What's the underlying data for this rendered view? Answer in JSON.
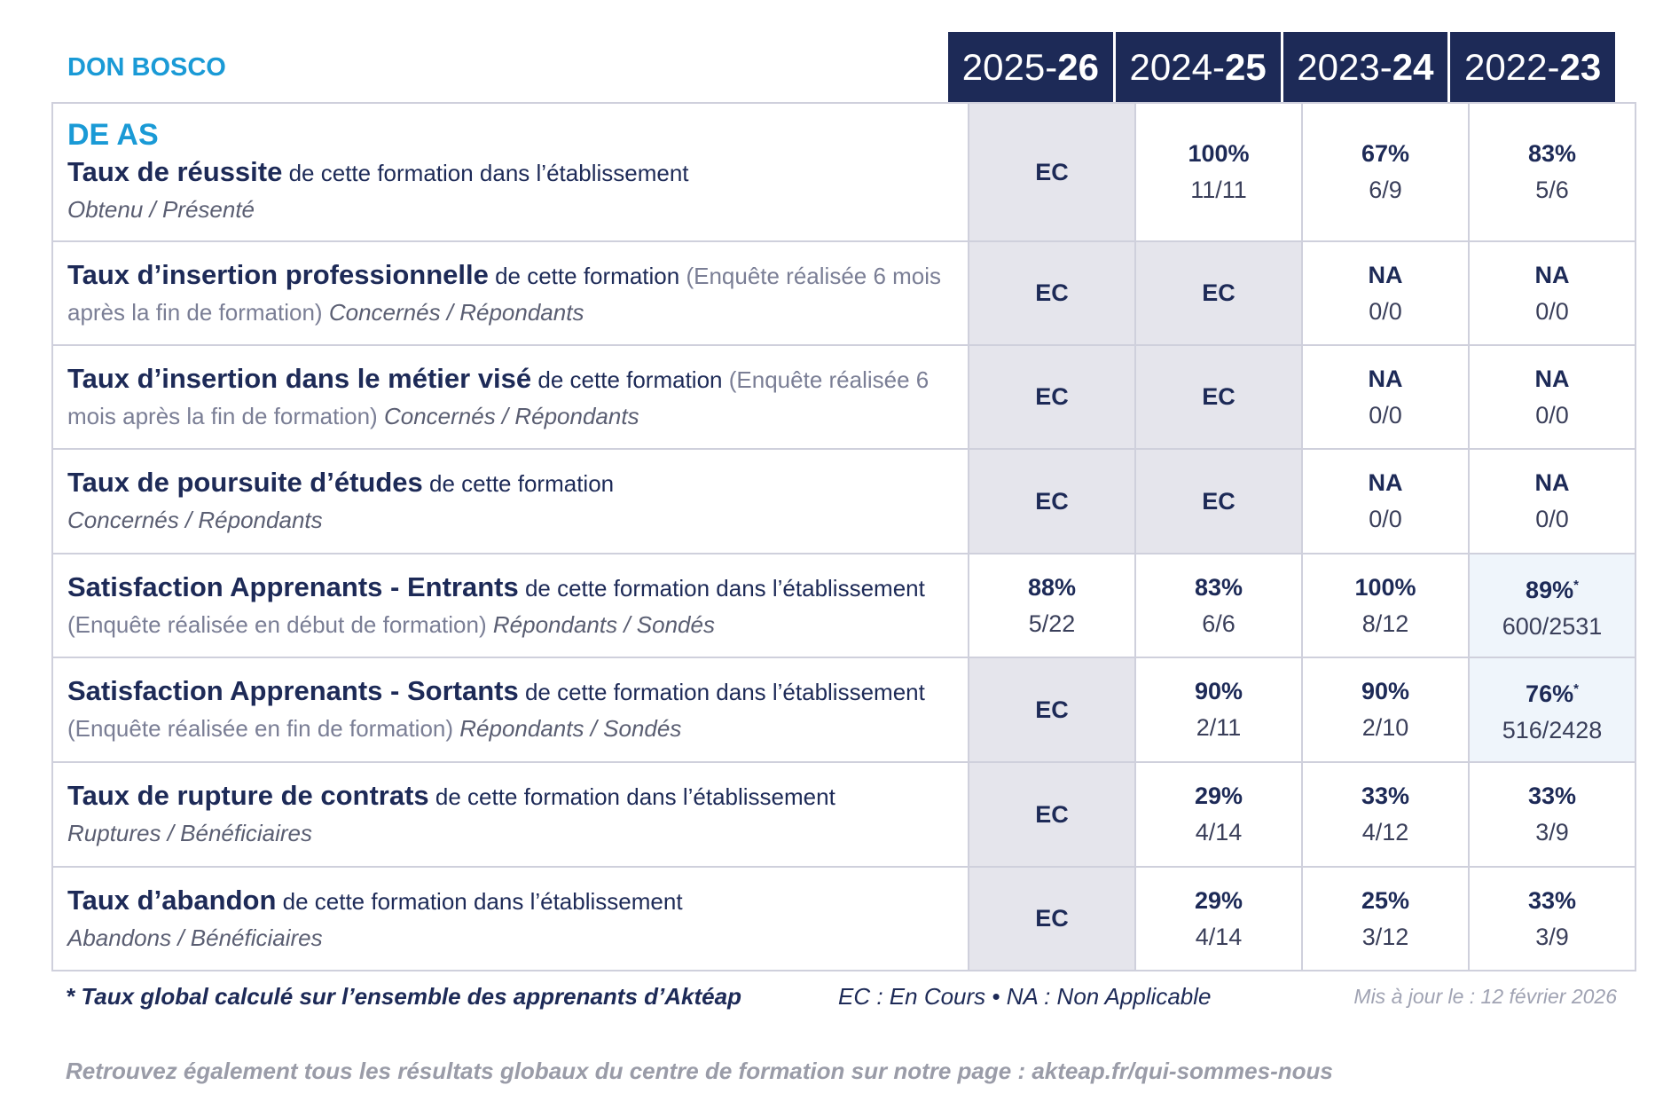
{
  "header": {
    "school": "DON BOSCO",
    "years": [
      {
        "start": "2025-",
        "end": "26"
      },
      {
        "start": "2024-",
        "end": "25"
      },
      {
        "start": "2023-",
        "end": "24"
      },
      {
        "start": "2022-",
        "end": "23"
      }
    ]
  },
  "table": {
    "program": "DE AS",
    "rows": [
      {
        "title": "Taux de réussite",
        "text": "de cette formation dans l’établissement",
        "sub": "Obtenu / Présenté",
        "cells": [
          {
            "rate": "EC"
          },
          {
            "rate": "100%",
            "ratio": "11/11"
          },
          {
            "rate": "67%",
            "ratio": "6/9"
          },
          {
            "rate": "83%",
            "ratio": "5/6"
          }
        ]
      },
      {
        "title": "Taux d’insertion professionnelle",
        "text": "de cette formation",
        "paren": "(Enquête réalisée 6 mois après la fin de formation)",
        "sub": "Concernés / Répondants",
        "cells": [
          {
            "rate": "EC"
          },
          {
            "rate": "EC"
          },
          {
            "rate": "NA",
            "ratio": "0/0"
          },
          {
            "rate": "NA",
            "ratio": "0/0"
          }
        ]
      },
      {
        "title": "Taux d’insertion dans le métier visé",
        "text": "de cette formation",
        "paren": "(Enquête réalisée 6 mois après la fin de formation)",
        "sub": "Concernés / Répondants",
        "cells": [
          {
            "rate": "EC"
          },
          {
            "rate": "EC"
          },
          {
            "rate": "NA",
            "ratio": "0/0"
          },
          {
            "rate": "NA",
            "ratio": "0/0"
          }
        ]
      },
      {
        "title": "Taux de poursuite d’études",
        "text": "de cette formation",
        "sub": "Concernés / Répondants",
        "cells": [
          {
            "rate": "EC"
          },
          {
            "rate": "EC"
          },
          {
            "rate": "NA",
            "ratio": "0/0"
          },
          {
            "rate": "NA",
            "ratio": "0/0"
          }
        ]
      },
      {
        "title": "Satisfaction Apprenants - Entrants",
        "text": "de cette formation dans l’établissement",
        "paren": "(Enquête réalisée en début de formation)",
        "sub": "Répondants / Sondés",
        "cells": [
          {
            "rate": "88%",
            "ratio": "5/22"
          },
          {
            "rate": "83%",
            "ratio": "6/6"
          },
          {
            "rate": "100%",
            "ratio": "8/12"
          },
          {
            "rate": "89%",
            "star": "*",
            "ratio": "600/2531"
          }
        ]
      },
      {
        "title": "Satisfaction Apprenants - Sortants",
        "text": "de cette formation dans l’établissement",
        "paren": "(Enquête réalisée en fin de formation)",
        "sub": "Répondants / Sondés",
        "cells": [
          {
            "rate": "EC"
          },
          {
            "rate": "90%",
            "ratio": "2/11"
          },
          {
            "rate": "90%",
            "ratio": "2/10"
          },
          {
            "rate": "76%",
            "star": "*",
            "ratio": "516/2428"
          }
        ]
      },
      {
        "title": "Taux de rupture de contrats",
        "text": "de cette formation dans l’établissement",
        "sub": "Ruptures / Bénéficiaires",
        "cells": [
          {
            "rate": "EC"
          },
          {
            "rate": "29%",
            "ratio": "4/14"
          },
          {
            "rate": "33%",
            "ratio": "4/12"
          },
          {
            "rate": "33%",
            "ratio": "3/9"
          }
        ]
      },
      {
        "title": "Taux d’abandon",
        "text": "de cette formation dans l’établissement",
        "sub": "Abandons / Bénéficiaires",
        "cells": [
          {
            "rate": "EC"
          },
          {
            "rate": "29%",
            "ratio": "4/14"
          },
          {
            "rate": "25%",
            "ratio": "3/12"
          },
          {
            "rate": "33%",
            "ratio": "3/9"
          }
        ]
      }
    ]
  },
  "footer": {
    "note": "* Taux global calculé sur l’ensemble des apprenants d’Aktéap",
    "legend": "EC : En Cours • NA : Non Applicable",
    "updated": "Mis à jour le : 12 février 2026",
    "link": "Retrouvez également tous les résultats globaux du centre de formation sur notre page : akteap.fr/qui-sommes-nous"
  }
}
